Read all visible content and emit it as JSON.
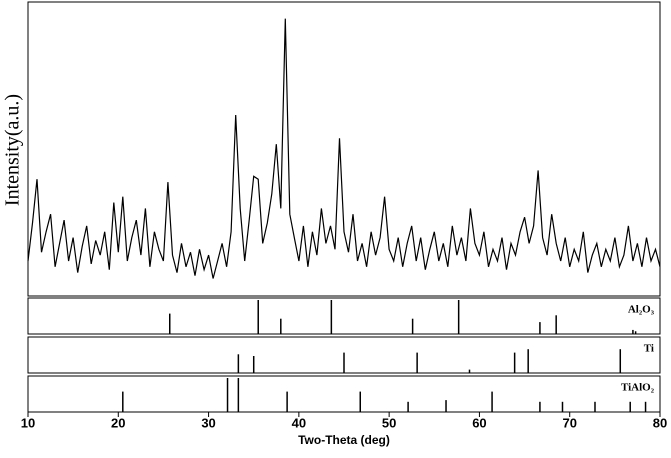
{
  "chart_data": [
    {
      "type": "line",
      "ylabel": "Intensity(a.u.)",
      "color": "#000000",
      "xlim": [
        10,
        80
      ],
      "ylim": [
        0,
        100
      ],
      "x": [
        10,
        10.5,
        11,
        11.5,
        12,
        12.5,
        13,
        13.5,
        14,
        14.5,
        15,
        15.5,
        16,
        16.5,
        17,
        17.5,
        18,
        18.5,
        19,
        19.5,
        20,
        20.5,
        21,
        21.5,
        22,
        22.5,
        23,
        23.5,
        24,
        24.5,
        25,
        25.5,
        26,
        26.5,
        27,
        27.5,
        28,
        28.5,
        29,
        29.5,
        30,
        30.5,
        31,
        31.5,
        32,
        32.5,
        33,
        33.5,
        34,
        34.5,
        35,
        35.5,
        36,
        36.5,
        37,
        37.5,
        38,
        38.5,
        39,
        39.5,
        40,
        40.5,
        41,
        41.5,
        42,
        42.5,
        43,
        43.5,
        44,
        44.5,
        45,
        45.5,
        46,
        46.5,
        47,
        47.5,
        48,
        48.5,
        49,
        49.5,
        50,
        50.5,
        51,
        51.5,
        52,
        52.5,
        53,
        53.5,
        54,
        54.5,
        55,
        55.5,
        56,
        56.5,
        57,
        57.5,
        58,
        58.5,
        59,
        59.5,
        60,
        60.5,
        61,
        61.5,
        62,
        62.5,
        63,
        63.5,
        64,
        64.5,
        65,
        65.5,
        66,
        66.5,
        67,
        67.5,
        68,
        68.5,
        69,
        69.5,
        70,
        70.5,
        71,
        71.5,
        72,
        72.5,
        73,
        73.5,
        74,
        74.5,
        75,
        75.5,
        76,
        76.5,
        77,
        77.5,
        78,
        78.5,
        79,
        79.5,
        80
      ],
      "values": [
        12,
        25,
        40,
        15,
        22,
        28,
        10,
        18,
        26,
        12,
        20,
        8,
        17,
        24,
        11,
        19,
        14,
        22,
        9,
        32,
        15,
        34,
        12,
        20,
        26,
        14,
        30,
        10,
        22,
        16,
        12,
        39,
        14,
        8,
        18,
        10,
        15,
        7,
        16,
        9,
        14,
        6,
        12,
        18,
        10,
        22,
        62,
        30,
        12,
        26,
        41,
        40,
        18,
        25,
        35,
        52,
        30,
        95,
        28,
        20,
        12,
        24,
        10,
        22,
        14,
        30,
        18,
        24,
        16,
        54,
        22,
        15,
        28,
        12,
        18,
        10,
        22,
        14,
        20,
        34,
        16,
        12,
        20,
        10,
        18,
        24,
        12,
        20,
        9,
        16,
        22,
        12,
        18,
        10,
        24,
        14,
        20,
        12,
        30,
        18,
        14,
        22,
        10,
        16,
        12,
        20,
        9,
        18,
        14,
        22,
        27,
        18,
        24,
        43,
        20,
        14,
        28,
        18,
        12,
        20,
        10,
        16,
        12,
        22,
        8,
        14,
        18,
        10,
        16,
        12,
        20,
        10,
        14,
        24,
        12,
        18,
        10,
        20,
        12,
        16,
        10
      ]
    },
    {
      "type": "stem",
      "label": "Al₂O₃",
      "color": "#000000",
      "xlim": [
        10,
        80
      ],
      "ylim": [
        0,
        100
      ],
      "x": [
        25.7,
        35.5,
        38.0,
        43.6,
        52.6,
        57.7,
        66.7,
        68.5,
        77.0,
        77.3
      ],
      "values": [
        60,
        100,
        45,
        100,
        45,
        100,
        35,
        55,
        12,
        8
      ]
    },
    {
      "type": "stem",
      "label": "Ti",
      "color": "#000000",
      "xlim": [
        10,
        80
      ],
      "ylim": [
        0,
        100
      ],
      "x": [
        33.3,
        35.0,
        45.0,
        53.1,
        58.9,
        63.9,
        65.4,
        75.6
      ],
      "values": [
        55,
        50,
        60,
        60,
        10,
        60,
        70,
        70
      ]
    },
    {
      "type": "stem",
      "label": "TiAlO₂",
      "color": "#000000",
      "xlim": [
        10,
        80
      ],
      "ylim": [
        0,
        100
      ],
      "xlabel": "Two-Theta (deg)",
      "xticks": [
        10,
        20,
        30,
        40,
        50,
        60,
        70,
        80
      ],
      "x": [
        20.5,
        32.1,
        33.3,
        38.7,
        46.8,
        52.1,
        56.3,
        61.4,
        66.7,
        69.2,
        72.8,
        76.7,
        78.4
      ],
      "values": [
        60,
        100,
        100,
        60,
        60,
        30,
        35,
        60,
        30,
        30,
        30,
        30,
        30
      ]
    }
  ]
}
